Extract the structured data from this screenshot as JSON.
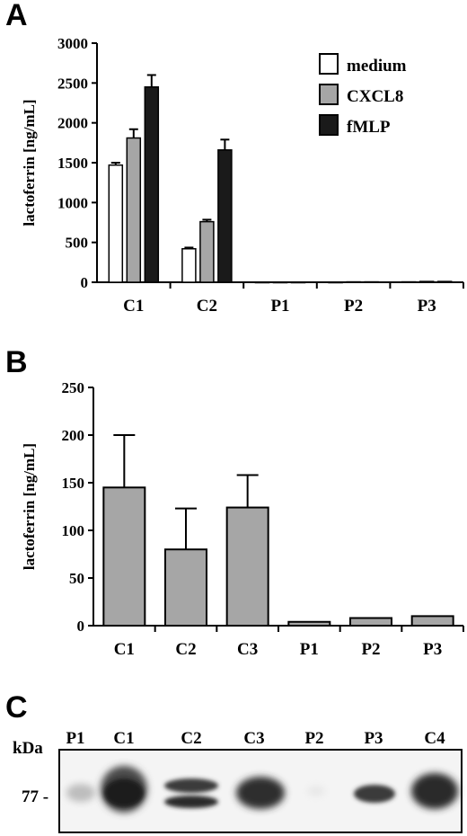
{
  "panels": {
    "a": "A",
    "b": "B",
    "c": "C"
  },
  "chart_data": [
    {
      "type": "bar",
      "panel": "A",
      "ylabel": "lactoferrin [ng/mL]",
      "ylim": [
        0,
        3000
      ],
      "yticks": [
        0,
        500,
        1000,
        1500,
        2000,
        2500,
        3000
      ],
      "categories": [
        "C1",
        "C2",
        "P1",
        "P2",
        "P3"
      ],
      "legend_position": "top-right",
      "series": [
        {
          "name": "medium",
          "color": "#ffffff",
          "values": [
            1470,
            420,
            0,
            0,
            5
          ],
          "errors": [
            30,
            15,
            0,
            0,
            0
          ]
        },
        {
          "name": "CXCL8",
          "color": "#a6a6a6",
          "values": [
            1810,
            760,
            0,
            5,
            10
          ],
          "errors": [
            110,
            25,
            0,
            0,
            0
          ]
        },
        {
          "name": "fMLP",
          "color": "#1a1a1a",
          "values": [
            2450,
            1660,
            0,
            5,
            10
          ],
          "errors": [
            150,
            130,
            0,
            0,
            0
          ]
        }
      ]
    },
    {
      "type": "bar",
      "panel": "B",
      "ylabel": "lactoferrin [ng/mL]",
      "ylim": [
        0,
        250
      ],
      "yticks": [
        0,
        50,
        100,
        150,
        200,
        250
      ],
      "categories": [
        "C1",
        "C2",
        "C3",
        "P1",
        "P2",
        "P3"
      ],
      "color": "#a6a6a6",
      "values": [
        145,
        80,
        124,
        4,
        8,
        10
      ],
      "errors": [
        55,
        43,
        34,
        0,
        0,
        0
      ]
    }
  ],
  "blot": {
    "unit_label": "kDa",
    "marker_label": "77 -",
    "lanes": [
      "P1",
      "C1",
      "C2",
      "C3",
      "P2",
      "P3",
      "C4"
    ]
  }
}
